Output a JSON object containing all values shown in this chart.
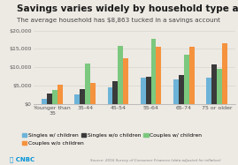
{
  "title": "Savings varies widely by household type and age",
  "subtitle": "The average household has $8,863 tucked in a savings account",
  "categories": [
    "Younger than\n35",
    "35-44",
    "45-54",
    "55-64",
    "65-74",
    "75 or older"
  ],
  "series_labels": [
    "Singles w/ children",
    "Singles w/o children",
    "Couples w/ children",
    "Couples w/o children"
  ],
  "series_values": [
    [
      1500,
      2500,
      4500,
      7200,
      6800,
      7200
    ],
    [
      2800,
      4000,
      6200,
      7500,
      8000,
      10800
    ],
    [
      3800,
      11000,
      15800,
      17800,
      13500,
      9500
    ],
    [
      5200,
      5800,
      12500,
      15500,
      15500,
      16500
    ]
  ],
  "colors": [
    "#6db3d8",
    "#3a3a3a",
    "#7bc87e",
    "#f5923e"
  ],
  "ylim": [
    0,
    20000
  ],
  "yticks": [
    0,
    5000,
    10000,
    15000,
    20000
  ],
  "ytick_labels": [
    "$0",
    "$5,000",
    "$10,000",
    "$15,000",
    "$20,000"
  ],
  "background_color": "#ede9e3",
  "title_color": "#1a1a1a",
  "subtitle_color": "#444444",
  "axis_color": "#aaaaaa",
  "grid_color": "#d8d4ce",
  "title_fontsize": 7.5,
  "subtitle_fontsize": 5.2,
  "tick_fontsize": 4.5,
  "legend_fontsize": 4.3,
  "source_text": "Source: 2016 Survey of Consumer Finances (data adjusted for inflation)"
}
